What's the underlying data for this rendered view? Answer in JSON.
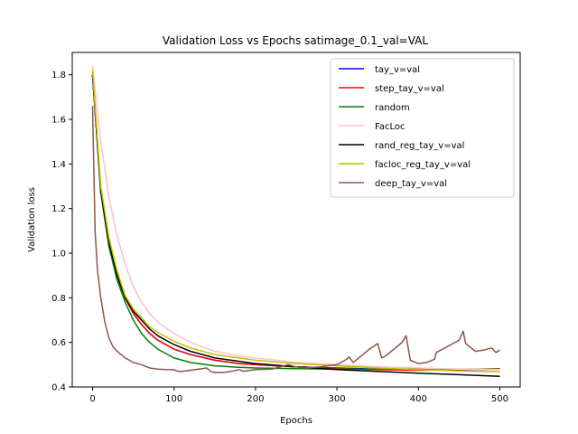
{
  "chart_data": {
    "type": "line",
    "title": "Validation Loss vs Epochs satimage_0.1_val=VAL",
    "xlabel": "Epochs",
    "ylabel": "Validation loss",
    "xlim": [
      -25,
      525
    ],
    "ylim": [
      0.4,
      1.9
    ],
    "xticks": [
      "0",
      "100",
      "200",
      "300",
      "400",
      "500"
    ],
    "yticks": [
      "0.4",
      "0.6",
      "0.8",
      "1.0",
      "1.2",
      "1.4",
      "1.6",
      "1.8"
    ],
    "grid": false,
    "legend_position": "top-right",
    "series": [
      {
        "name": "tay_v=val",
        "color": "#0000ff",
        "x": [
          0,
          10,
          20,
          30,
          40,
          50,
          60,
          70,
          80,
          100,
          120,
          150,
          180,
          200,
          250,
          300,
          350,
          400,
          450,
          500
        ],
        "y": [
          1.8,
          1.28,
          1.05,
          0.9,
          0.8,
          0.73,
          0.68,
          0.64,
          0.61,
          0.57,
          0.545,
          0.52,
          0.505,
          0.5,
          0.49,
          0.485,
          0.48,
          0.478,
          0.478,
          0.478
        ]
      },
      {
        "name": "step_tay_v=val",
        "color": "#ff0000",
        "x": [
          0,
          10,
          20,
          30,
          40,
          50,
          60,
          70,
          80,
          100,
          120,
          150,
          180,
          200,
          250,
          300,
          350,
          400,
          450,
          500
        ],
        "y": [
          1.8,
          1.28,
          1.05,
          0.92,
          0.8,
          0.73,
          0.68,
          0.64,
          0.61,
          0.57,
          0.545,
          0.52,
          0.505,
          0.5,
          0.49,
          0.483,
          0.478,
          0.475,
          0.478,
          0.482
        ]
      },
      {
        "name": "random",
        "color": "#008000",
        "x": [
          0,
          10,
          20,
          30,
          40,
          50,
          60,
          70,
          80,
          100,
          120,
          150,
          180,
          200,
          250,
          300,
          350,
          400,
          450,
          500
        ],
        "y": [
          1.8,
          1.27,
          1.03,
          0.88,
          0.78,
          0.7,
          0.64,
          0.6,
          0.57,
          0.53,
          0.51,
          0.495,
          0.488,
          0.485,
          0.482,
          0.48,
          0.48,
          0.48,
          0.48,
          0.48
        ]
      },
      {
        "name": "FacLoc",
        "color": "#ffc0cb",
        "x": [
          0,
          10,
          20,
          30,
          40,
          50,
          60,
          70,
          80,
          100,
          120,
          150,
          180,
          200,
          250,
          300,
          350,
          400,
          450,
          500
        ],
        "y": [
          1.84,
          1.5,
          1.25,
          1.08,
          0.95,
          0.85,
          0.78,
          0.73,
          0.69,
          0.64,
          0.6,
          0.56,
          0.54,
          0.53,
          0.51,
          0.5,
          0.49,
          0.485,
          0.48,
          0.478
        ]
      },
      {
        "name": "rand_reg_tay_v=val",
        "color": "#000000",
        "x": [
          0,
          10,
          20,
          30,
          40,
          50,
          60,
          70,
          80,
          100,
          120,
          150,
          180,
          200,
          250,
          300,
          350,
          400,
          450,
          500
        ],
        "y": [
          1.8,
          1.28,
          1.05,
          0.9,
          0.8,
          0.74,
          0.7,
          0.66,
          0.63,
          0.59,
          0.56,
          0.53,
          0.515,
          0.505,
          0.49,
          0.478,
          0.47,
          0.462,
          0.455,
          0.448
        ]
      },
      {
        "name": "facloc_reg_tay_v=val",
        "color": "#bfbf00",
        "x": [
          0,
          10,
          20,
          30,
          40,
          50,
          60,
          70,
          80,
          100,
          120,
          150,
          180,
          200,
          250,
          300,
          350,
          400,
          450,
          500
        ],
        "y": [
          1.82,
          1.3,
          1.07,
          0.92,
          0.81,
          0.75,
          0.71,
          0.67,
          0.645,
          0.605,
          0.575,
          0.545,
          0.53,
          0.52,
          0.505,
          0.495,
          0.485,
          0.478,
          0.472,
          0.468
        ]
      },
      {
        "name": "deep_tay_v=val",
        "color": "#8c564b",
        "x": [
          0,
          3,
          6,
          10,
          15,
          20,
          25,
          30,
          40,
          50,
          60,
          70,
          80,
          90,
          100,
          105,
          110,
          120,
          130,
          140,
          145,
          150,
          160,
          170,
          180,
          185,
          200,
          220,
          240,
          250,
          260,
          280,
          300,
          310,
          315,
          320,
          340,
          350,
          355,
          360,
          380,
          385,
          390,
          400,
          410,
          420,
          422,
          430,
          440,
          450,
          455,
          458,
          470,
          480,
          490,
          495,
          500
        ],
        "y": [
          1.66,
          1.1,
          0.92,
          0.8,
          0.69,
          0.62,
          0.58,
          0.56,
          0.53,
          0.51,
          0.5,
          0.485,
          0.48,
          0.478,
          0.477,
          0.47,
          0.47,
          0.475,
          0.48,
          0.485,
          0.47,
          0.465,
          0.465,
          0.47,
          0.478,
          0.47,
          0.478,
          0.48,
          0.5,
          0.49,
          0.485,
          0.49,
          0.5,
          0.52,
          0.535,
          0.51,
          0.57,
          0.595,
          0.53,
          0.54,
          0.6,
          0.63,
          0.52,
          0.505,
          0.51,
          0.525,
          0.555,
          0.57,
          0.59,
          0.61,
          0.65,
          0.595,
          0.56,
          0.565,
          0.575,
          0.555,
          0.565
        ]
      }
    ]
  }
}
